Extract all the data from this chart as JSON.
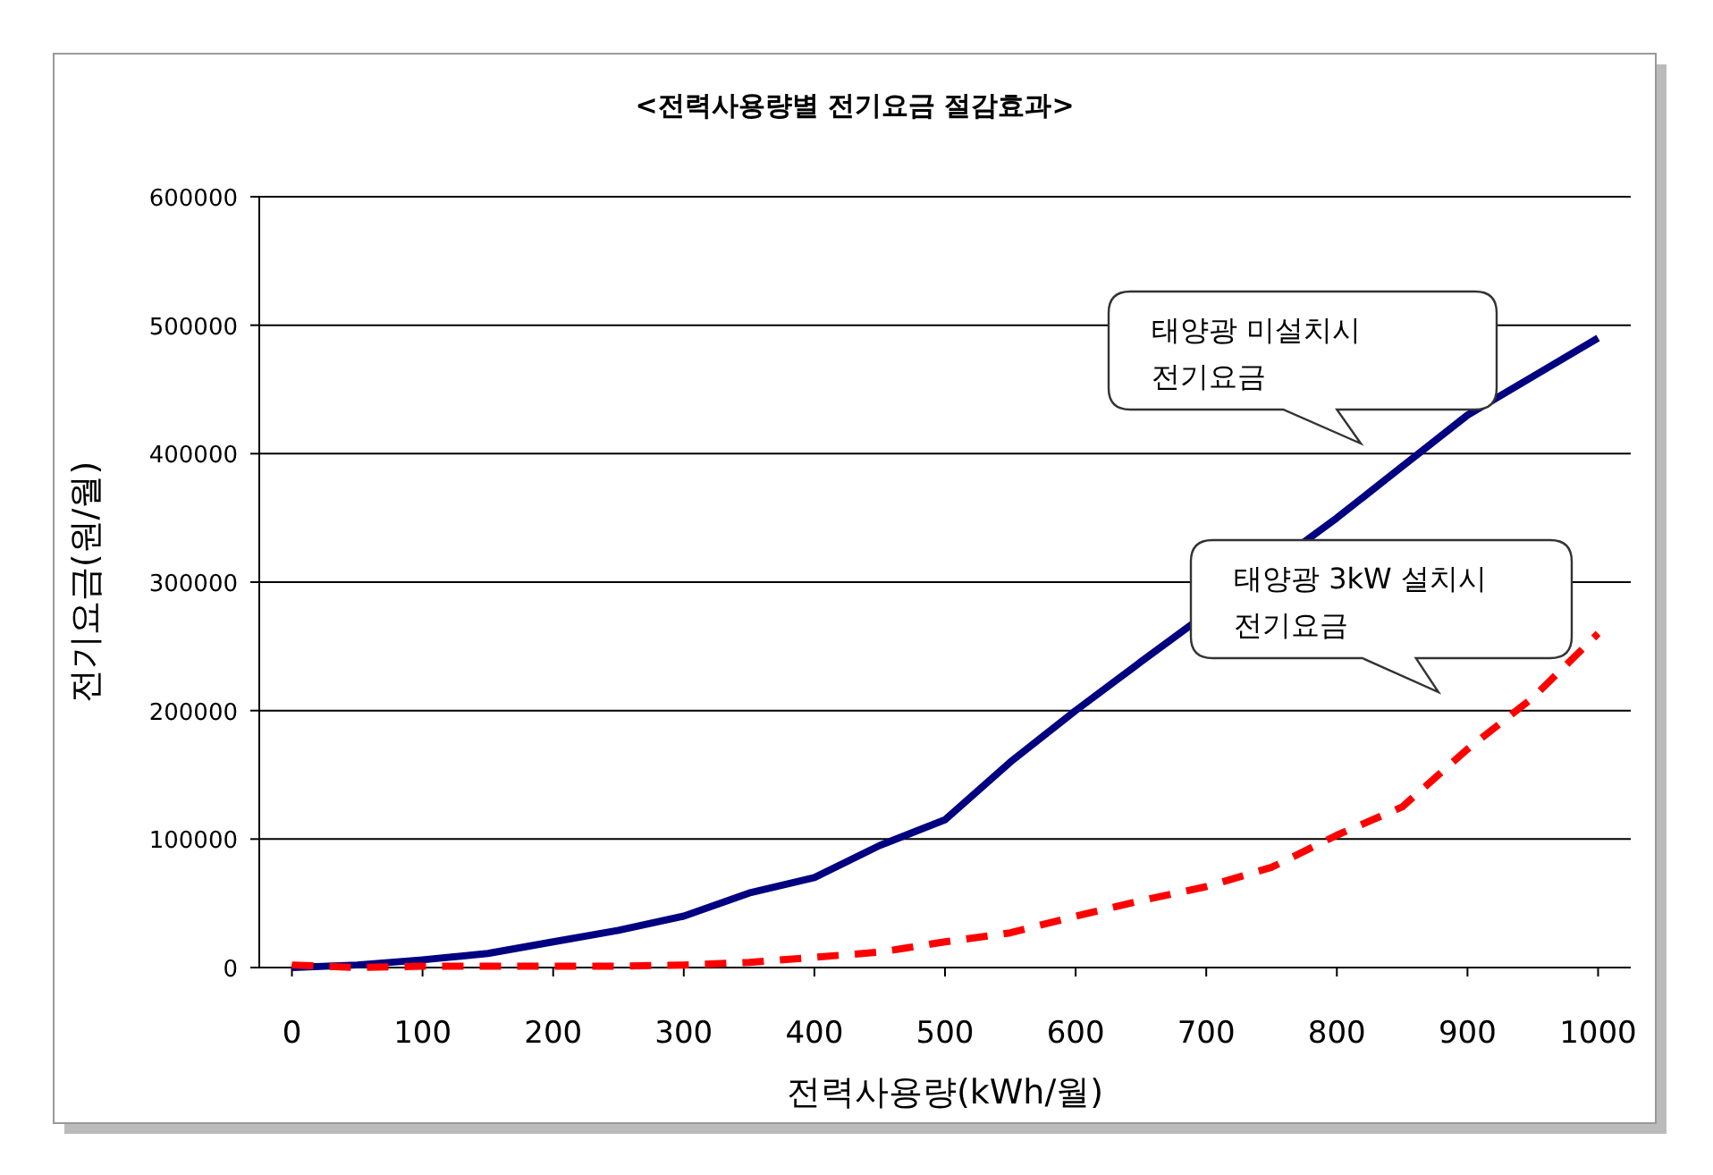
{
  "chart_data": {
    "type": "line",
    "title": "<전력사용량별 전기요금 절감효과>",
    "xlabel": "전력사용량(kWh/월)",
    "ylabel": "전기요금(원/월)",
    "x": [
      0,
      50,
      100,
      150,
      200,
      250,
      300,
      350,
      400,
      450,
      500,
      550,
      600,
      650,
      700,
      750,
      800,
      850,
      900,
      950,
      1000
    ],
    "series": [
      {
        "color": "#000080",
        "line_style": "solid",
        "values": [
          0,
          2000,
          6000,
          11000,
          20000,
          29000,
          40000,
          58000,
          70000,
          95000,
          115000,
          160000,
          200000,
          238000,
          null,
          null,
          350000,
          390000,
          430000,
          460000,
          490000
        ]
      },
      {
        "color": "#ff0000",
        "line_style": "dashed",
        "values": [
          2000,
          0,
          1000,
          1000,
          1000,
          1000,
          2000,
          4000,
          8000,
          12000,
          20000,
          27000,
          40000,
          52000,
          63000,
          78000,
          103000,
          125000,
          170000,
          210000,
          260000
        ]
      }
    ],
    "xlim": [
      -25,
      1025
    ],
    "xticks": [
      0,
      100,
      200,
      300,
      400,
      500,
      600,
      700,
      800,
      900,
      1000
    ],
    "ylim": [
      0,
      600000
    ],
    "yticks": [
      0,
      100000,
      200000,
      300000,
      400000,
      500000,
      600000
    ],
    "grid": "y",
    "annotations": [
      "태양광 미설치시\n전기요금",
      "태양광 3kW 설치시\n전기요금"
    ]
  }
}
